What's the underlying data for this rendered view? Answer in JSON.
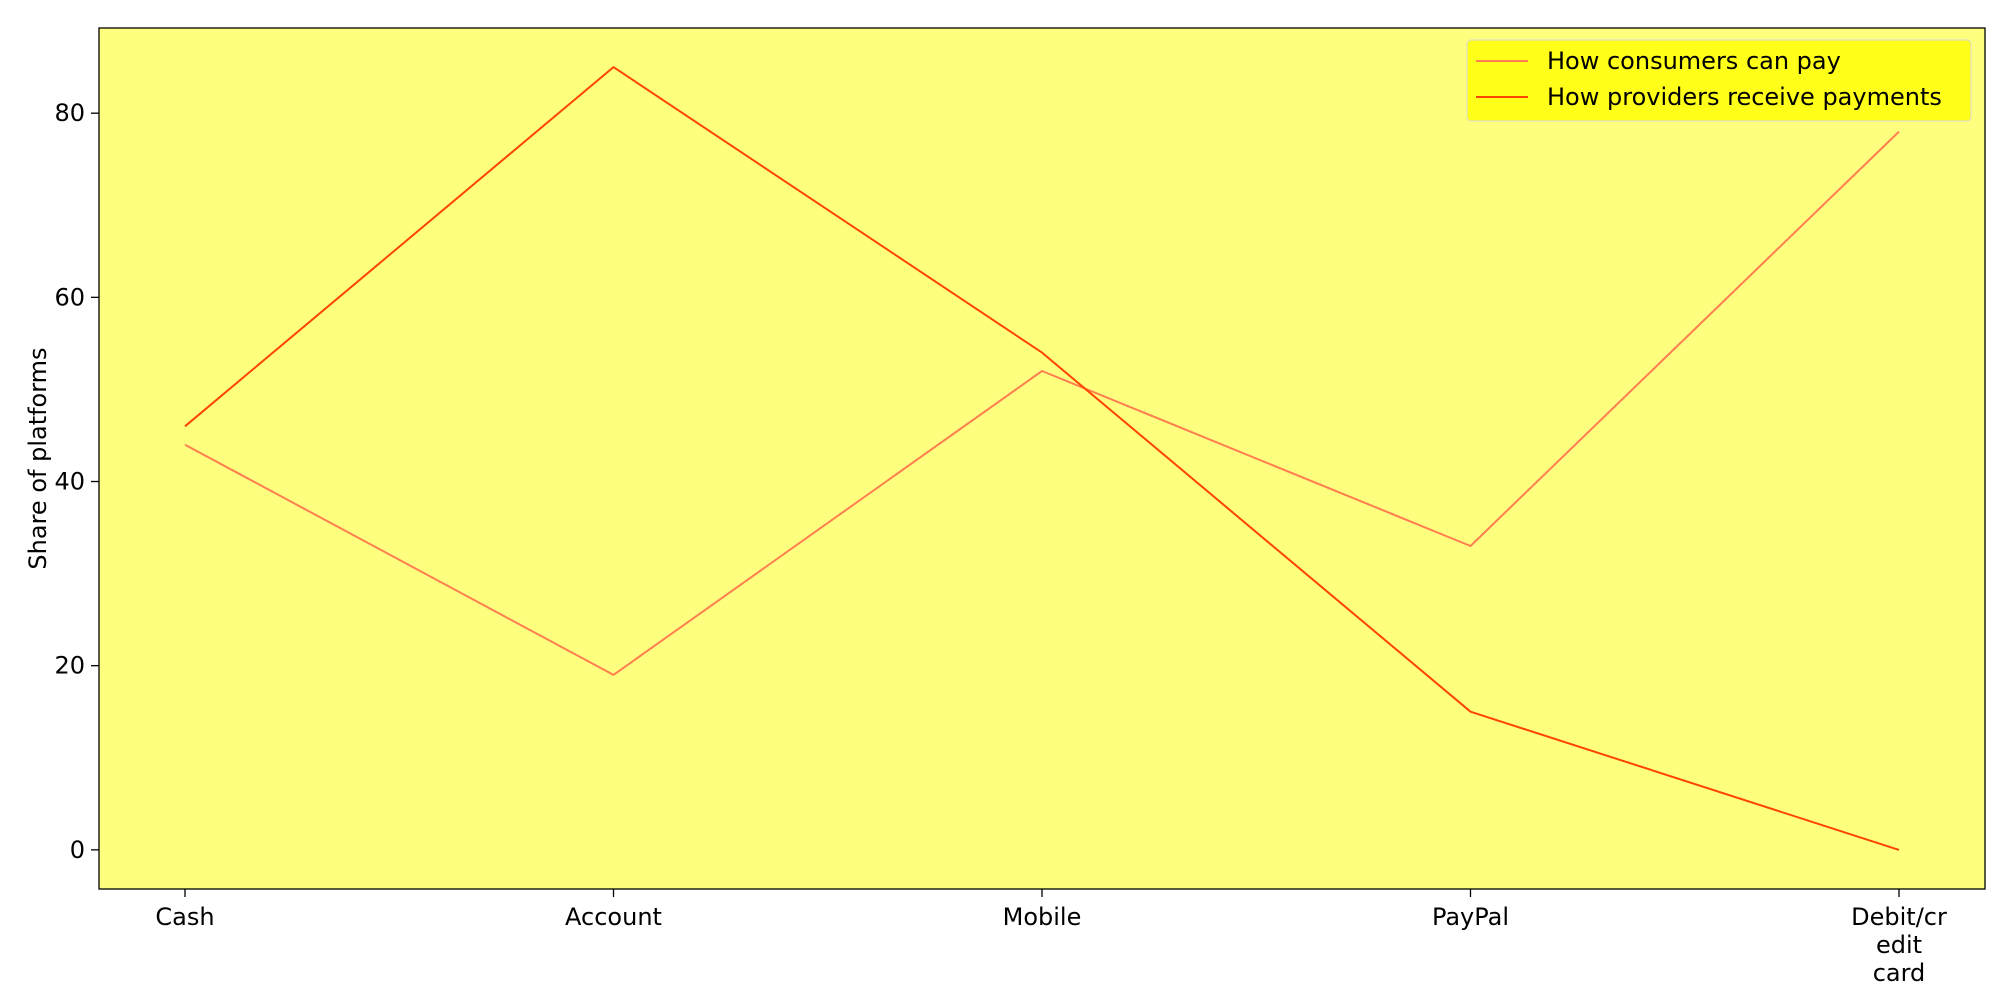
{
  "chart_data": {
    "type": "line",
    "title": "",
    "xlabel": "",
    "ylabel": "Share of platforms",
    "categories": [
      [
        "Cash"
      ],
      [
        "Account"
      ],
      [
        "Mobile"
      ],
      [
        "PayPal"
      ],
      [
        "Debit/cr",
        "edit",
        "card"
      ]
    ],
    "series": [
      {
        "name": "How consumers can pay",
        "values": [
          44,
          19,
          52,
          33,
          78
        ],
        "color": "#ff7f50"
      },
      {
        "name": "How providers receive payments",
        "values": [
          46,
          85,
          54,
          15,
          0
        ],
        "color": "#ff4500"
      }
    ],
    "ylim": [
      -4.25,
      89.25
    ],
    "yticks": [
      0,
      20,
      40,
      60,
      80
    ],
    "grid": false,
    "legend_position": "top-right",
    "colors": {
      "plot_background": "#ffff7f",
      "legend_background": "#ffff1a"
    }
  }
}
